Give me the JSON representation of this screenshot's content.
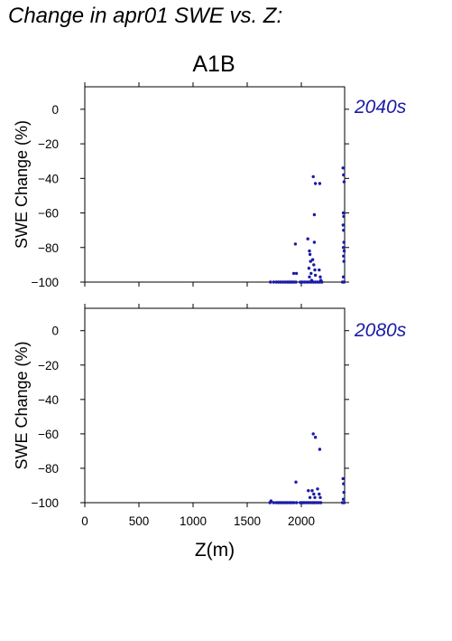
{
  "page": {
    "title": "Change in apr01 SWE vs. Z:",
    "scenario": "A1B"
  },
  "colors": {
    "points": "#1a1aa6",
    "period_label": "#1a1aa6",
    "axes": "#000000"
  },
  "chart_data": [
    {
      "type": "scatter",
      "period_label": "2040s",
      "ylabel": "SWE Change (%)",
      "xlabel": "",
      "xlim": [
        0,
        2400
      ],
      "ylim": [
        -100,
        13
      ],
      "yticks": [
        0,
        -20,
        -40,
        -60,
        -80,
        -100
      ],
      "xticks": [
        0,
        500,
        1000,
        1500,
        2000
      ],
      "x_ticklabels_shown": false,
      "grid": false,
      "points": [
        [
          1715,
          -100
        ],
        [
          1745,
          -100
        ],
        [
          1770,
          -100
        ],
        [
          1790,
          -100
        ],
        [
          1810,
          -100
        ],
        [
          1830,
          -100
        ],
        [
          1850,
          -100
        ],
        [
          1870,
          -100
        ],
        [
          1885,
          -100
        ],
        [
          1900,
          -100
        ],
        [
          1915,
          -100
        ],
        [
          1930,
          -100
        ],
        [
          1950,
          -100
        ],
        [
          1990,
          -100
        ],
        [
          2010,
          -100
        ],
        [
          2030,
          -100
        ],
        [
          2050,
          -100
        ],
        [
          2070,
          -100
        ],
        [
          2090,
          -100
        ],
        [
          2110,
          -100
        ],
        [
          2130,
          -100
        ],
        [
          2150,
          -100
        ],
        [
          2170,
          -100
        ],
        [
          2190,
          -100
        ],
        [
          2380,
          -100
        ],
        [
          2395,
          -100
        ],
        [
          1930,
          -95
        ],
        [
          1955,
          -95
        ],
        [
          1945,
          -78
        ],
        [
          2060,
          -75
        ],
        [
          2075,
          -82
        ],
        [
          2080,
          -84
        ],
        [
          2085,
          -88
        ],
        [
          2070,
          -92
        ],
        [
          2090,
          -95
        ],
        [
          2075,
          -97
        ],
        [
          2095,
          -99
        ],
        [
          2105,
          -87
        ],
        [
          2115,
          -90
        ],
        [
          2125,
          -93
        ],
        [
          2130,
          -96
        ],
        [
          2120,
          -77
        ],
        [
          2110,
          -39
        ],
        [
          2120,
          -61
        ],
        [
          2130,
          -43
        ],
        [
          2170,
          -43
        ],
        [
          2165,
          -93
        ],
        [
          2175,
          -97
        ],
        [
          2180,
          -99
        ],
        [
          2385,
          -34
        ],
        [
          2390,
          -38
        ],
        [
          2395,
          -42
        ],
        [
          2388,
          -60
        ],
        [
          2392,
          -62
        ],
        [
          2386,
          -67
        ],
        [
          2390,
          -70
        ],
        [
          2393,
          -77
        ],
        [
          2388,
          -80
        ],
        [
          2396,
          -82
        ],
        [
          2390,
          -85
        ],
        [
          2393,
          -88
        ],
        [
          2388,
          -97
        ]
      ]
    },
    {
      "type": "scatter",
      "period_label": "2080s",
      "ylabel": "SWE Change (%)",
      "xlabel": "Z(m)",
      "xlim": [
        0,
        2400
      ],
      "ylim": [
        -100,
        13
      ],
      "yticks": [
        0,
        -20,
        -40,
        -60,
        -80,
        -100
      ],
      "xticks": [
        0,
        500,
        1000,
        1500,
        2000
      ],
      "xticklabels": [
        "0",
        "500",
        "1000",
        "1500",
        "2000"
      ],
      "x_ticklabels_shown": true,
      "grid": false,
      "points": [
        [
          1710,
          -100
        ],
        [
          1720,
          -99
        ],
        [
          1745,
          -100
        ],
        [
          1770,
          -100
        ],
        [
          1790,
          -100
        ],
        [
          1810,
          -100
        ],
        [
          1830,
          -100
        ],
        [
          1850,
          -100
        ],
        [
          1870,
          -100
        ],
        [
          1890,
          -100
        ],
        [
          1910,
          -100
        ],
        [
          1930,
          -100
        ],
        [
          1955,
          -100
        ],
        [
          1990,
          -100
        ],
        [
          2010,
          -100
        ],
        [
          2025,
          -100
        ],
        [
          2045,
          -100
        ],
        [
          2065,
          -100
        ],
        [
          2085,
          -100
        ],
        [
          2105,
          -100
        ],
        [
          2120,
          -100
        ],
        [
          2140,
          -100
        ],
        [
          2160,
          -100
        ],
        [
          2180,
          -100
        ],
        [
          2380,
          -100
        ],
        [
          2395,
          -100
        ],
        [
          1950,
          -88
        ],
        [
          2065,
          -93
        ],
        [
          2080,
          -97
        ],
        [
          2100,
          -93
        ],
        [
          2115,
          -95
        ],
        [
          2125,
          -97
        ],
        [
          2150,
          -92
        ],
        [
          2165,
          -95
        ],
        [
          2175,
          -97
        ],
        [
          2110,
          -60
        ],
        [
          2130,
          -62
        ],
        [
          2170,
          -69
        ],
        [
          2385,
          -86
        ],
        [
          2390,
          -89
        ],
        [
          2393,
          -94
        ],
        [
          2388,
          -98
        ]
      ]
    }
  ]
}
